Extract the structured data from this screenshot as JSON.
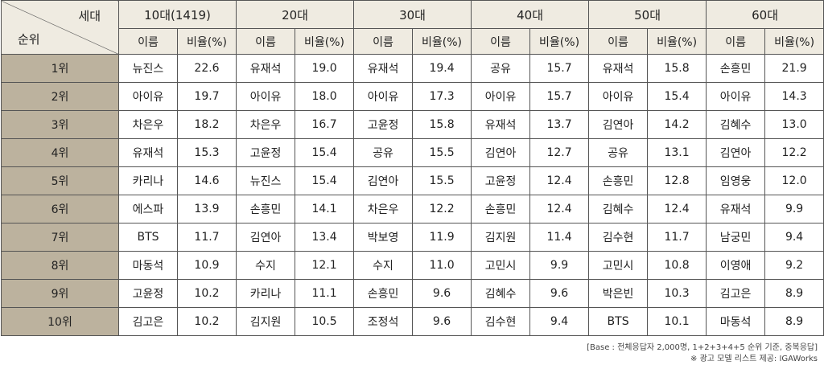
{
  "header": {
    "corner_top": "세대",
    "corner_bottom": "순위",
    "groups": [
      {
        "label": "10대(1419)",
        "name": "이름",
        "ratio": "비율(%)"
      },
      {
        "label": "20대",
        "name": "이름",
        "ratio": "비율(%)"
      },
      {
        "label": "30대",
        "name": "이름",
        "ratio": "비율(%)"
      },
      {
        "label": "40대",
        "name": "이름",
        "ratio": "비율(%)"
      },
      {
        "label": "50대",
        "name": "이름",
        "ratio": "비율(%)"
      },
      {
        "label": "60대",
        "name": "이름",
        "ratio": "비율(%)"
      }
    ]
  },
  "table": {
    "rows": [
      {
        "rank": "1위",
        "cells": [
          [
            "뉴진스",
            "22.6"
          ],
          [
            "유재석",
            "19.0"
          ],
          [
            "유재석",
            "19.4"
          ],
          [
            "공유",
            "15.7"
          ],
          [
            "유재석",
            "15.8"
          ],
          [
            "손흥민",
            "21.9"
          ]
        ]
      },
      {
        "rank": "2위",
        "cells": [
          [
            "아이유",
            "19.7"
          ],
          [
            "아이유",
            "18.0"
          ],
          [
            "아이유",
            "17.3"
          ],
          [
            "아이유",
            "15.7"
          ],
          [
            "아이유",
            "15.4"
          ],
          [
            "아이유",
            "14.3"
          ]
        ]
      },
      {
        "rank": "3위",
        "cells": [
          [
            "차은우",
            "18.2"
          ],
          [
            "차은우",
            "16.7"
          ],
          [
            "고윤정",
            "15.8"
          ],
          [
            "유재석",
            "13.7"
          ],
          [
            "김연아",
            "14.2"
          ],
          [
            "김혜수",
            "13.0"
          ]
        ]
      },
      {
        "rank": "4위",
        "cells": [
          [
            "유재석",
            "15.3"
          ],
          [
            "고윤정",
            "15.4"
          ],
          [
            "공유",
            "15.5"
          ],
          [
            "김연아",
            "12.7"
          ],
          [
            "공유",
            "13.1"
          ],
          [
            "김연아",
            "12.2"
          ]
        ]
      },
      {
        "rank": "5위",
        "cells": [
          [
            "카리나",
            "14.6"
          ],
          [
            "뉴진스",
            "15.4"
          ],
          [
            "김연아",
            "15.5"
          ],
          [
            "고윤정",
            "12.4"
          ],
          [
            "손흥민",
            "12.8"
          ],
          [
            "임영웅",
            "12.0"
          ]
        ]
      },
      {
        "rank": "6위",
        "cells": [
          [
            "에스파",
            "13.9"
          ],
          [
            "손흥민",
            "14.1"
          ],
          [
            "차은우",
            "12.2"
          ],
          [
            "손흥민",
            "12.4"
          ],
          [
            "김혜수",
            "12.4"
          ],
          [
            "유재석",
            "9.9"
          ]
        ]
      },
      {
        "rank": "7위",
        "cells": [
          [
            "BTS",
            "11.7"
          ],
          [
            "김연아",
            "13.4"
          ],
          [
            "박보영",
            "11.9"
          ],
          [
            "김지원",
            "11.4"
          ],
          [
            "김수현",
            "11.7"
          ],
          [
            "남궁민",
            "9.4"
          ]
        ]
      },
      {
        "rank": "8위",
        "cells": [
          [
            "마동석",
            "10.9"
          ],
          [
            "수지",
            "12.1"
          ],
          [
            "수지",
            "11.0"
          ],
          [
            "고민시",
            "9.9"
          ],
          [
            "고민시",
            "10.8"
          ],
          [
            "이영애",
            "9.2"
          ]
        ]
      },
      {
        "rank": "9위",
        "cells": [
          [
            "고윤정",
            "10.2"
          ],
          [
            "카리나",
            "11.1"
          ],
          [
            "손흥민",
            "9.6"
          ],
          [
            "김혜수",
            "9.6"
          ],
          [
            "박은빈",
            "10.3"
          ],
          [
            "김고은",
            "8.9"
          ]
        ]
      },
      {
        "rank": "10위",
        "cells": [
          [
            "김고은",
            "10.2"
          ],
          [
            "김지원",
            "10.5"
          ],
          [
            "조정석",
            "9.6"
          ],
          [
            "김수현",
            "9.4"
          ],
          [
            "BTS",
            "10.1"
          ],
          [
            "마동석",
            "8.9"
          ]
        ]
      }
    ]
  },
  "footnotes": [
    "[Base : 전체응답자 2,000명, 1+2+3+4+5 순위 기준, 중복응답]",
    "※ 광고 모델 리스트 제공: IGAWorks"
  ]
}
